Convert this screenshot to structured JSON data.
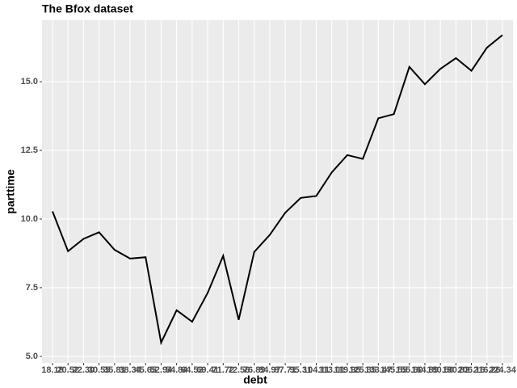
{
  "chart_data": {
    "type": "line",
    "title": "The Bfox dataset",
    "x_label": "debt",
    "y_label": "parttime",
    "categories": [
      "18.18",
      "20.52",
      "22.30",
      "30.55",
      "35.81",
      "38.34",
      "45.65",
      "52.94",
      "54.84",
      "64.53",
      "69.41",
      "71.72",
      "72.56",
      "76.89",
      "84.97",
      "87.71",
      "95.31",
      "104.11",
      "113.01",
      "119.95",
      "125.35",
      "133.47",
      "145.55",
      "155.60",
      "164.89",
      "180.50",
      "190.82",
      "206.16",
      "216.26",
      "224.34"
    ],
    "series": [
      {
        "name": "parttime",
        "color": "#000000",
        "values": [
          10.28,
          8.83,
          9.28,
          9.52,
          8.88,
          8.56,
          8.61,
          5.5,
          6.68,
          6.26,
          7.31,
          8.66,
          6.33,
          8.8,
          9.42,
          10.23,
          10.77,
          10.84,
          11.7,
          12.33,
          12.19,
          13.67,
          13.82,
          15.54,
          14.91,
          15.47,
          15.86,
          15.4,
          16.24,
          16.7
        ]
      }
    ],
    "ylim": [
      4.76,
      17.24
    ],
    "yticks": [
      {
        "value": 5,
        "label": "5.0"
      },
      7.5,
      {
        "value": 10,
        "label": "10.0"
      },
      12.5,
      {
        "value": 15,
        "label": "15.0"
      }
    ],
    "grid": true
  }
}
